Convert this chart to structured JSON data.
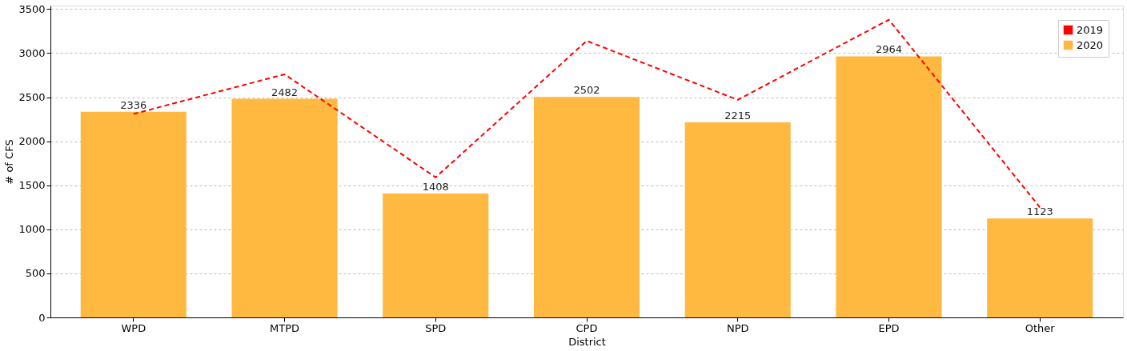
{
  "chart_data": {
    "type": "bar",
    "xlabel": "District",
    "ylabel": "# of CFS",
    "categories": [
      "WPD",
      "MTPD",
      "SPD",
      "CPD",
      "NPD",
      "EPD",
      "Other"
    ],
    "series": [
      {
        "name": "2019",
        "type": "line",
        "color": "#ff0000",
        "line_style": "dashed",
        "marker": "none",
        "values": [
          2310,
          2760,
          1590,
          3140,
          2470,
          3380,
          1250
        ]
      },
      {
        "name": "2020",
        "color": "#ffb940",
        "data_labels": true,
        "values": [
          2336,
          2482,
          1408,
          2502,
          2215,
          2964,
          1123
        ]
      }
    ],
    "ylim": [
      0,
      3540
    ],
    "yticks": [
      0,
      500,
      1000,
      1500,
      2000,
      2500,
      3000,
      3500
    ],
    "grid": "y",
    "legend": "top right"
  }
}
